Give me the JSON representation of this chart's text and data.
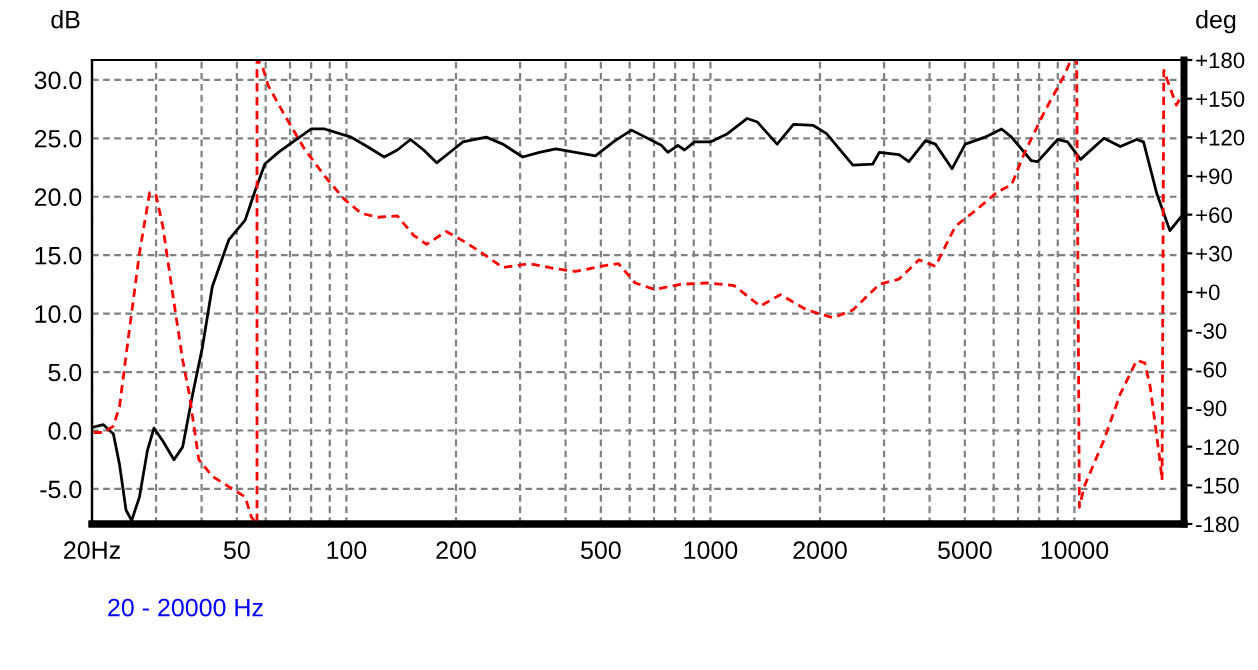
{
  "chart_data": {
    "type": "line",
    "xlabel": null,
    "ylabel": "dB",
    "y2label": "deg",
    "annotations": [
      "20 - 20000 Hz"
    ],
    "log": "x",
    "grid": true,
    "xlim": [
      20,
      20000
    ],
    "xticks": [
      {
        "value": 20,
        "label": "20Hz"
      },
      {
        "value": 30,
        "label": null
      },
      {
        "value": 40,
        "label": null
      },
      50,
      {
        "value": 60,
        "label": null
      },
      {
        "value": 70,
        "label": null
      },
      {
        "value": 80,
        "label": null
      },
      {
        "value": 90,
        "label": null
      },
      100,
      200,
      {
        "value": 300,
        "label": null
      },
      {
        "value": 400,
        "label": null
      },
      500,
      {
        "value": 600,
        "label": null
      },
      {
        "value": 700,
        "label": null
      },
      {
        "value": 800,
        "label": null
      },
      {
        "value": 900,
        "label": null
      },
      1000,
      2000,
      {
        "value": 3000,
        "label": null
      },
      {
        "value": 4000,
        "label": null
      },
      5000,
      {
        "value": 6000,
        "label": null
      },
      {
        "value": 7000,
        "label": null
      },
      {
        "value": 8000,
        "label": null
      },
      {
        "value": 9000,
        "label": null
      },
      10000
    ],
    "ylim": [
      -8,
      31.7
    ],
    "yticks": [
      {
        "value": -5,
        "label": "-5.0"
      },
      {
        "value": 0,
        "label": "0.0"
      },
      {
        "value": 5,
        "label": "5.0"
      },
      {
        "value": 10,
        "label": "10.0"
      },
      {
        "value": 15,
        "label": "15.0"
      },
      {
        "value": 20,
        "label": "20.0"
      },
      {
        "value": 25,
        "label": "25.0"
      },
      {
        "value": 30,
        "label": "30.0"
      }
    ],
    "y2lim": [
      -180,
      180
    ],
    "y2ticks": [
      -180,
      -150,
      -120,
      -90,
      -60,
      -30,
      {
        "value": 0,
        "label": "+0"
      },
      {
        "value": 30,
        "label": "+30"
      },
      {
        "value": 60,
        "label": "+60"
      },
      {
        "value": 90,
        "label": "+90"
      },
      {
        "value": 120,
        "label": "+120"
      },
      {
        "value": 150,
        "label": "+150"
      },
      {
        "value": 180,
        "label": "+180"
      }
    ],
    "series": [
      {
        "color": "#000000",
        "line_style": "solid",
        "x": [
          20.2,
          21.5,
          22.9,
          23.8,
          24.8,
          25.7,
          27.0,
          28.4,
          29.6,
          31.3,
          33.6,
          35.5,
          37.8,
          40.2,
          42.8,
          47.5,
          52.7,
          56.1,
          59.7,
          65.0,
          72.1,
          80.1,
          87.1,
          103,
          114,
          127,
          138,
          150,
          163,
          177,
          196,
          209,
          242,
          269,
          305,
          339,
          376,
          426,
          483,
          547,
          607,
          733,
          764,
          814,
          849,
          904,
          1003,
          1114,
          1262,
          1345,
          1525,
          1691,
          1918,
          2085,
          2462,
          2793,
          2911,
          3297,
          3508,
          3899,
          4150,
          4613,
          5013,
          5678,
          6310,
          6715,
          7603,
          7925,
          8990,
          9572,
          10400,
          12050,
          13370,
          14830,
          15480,
          16830,
          18290,
          19900
        ],
        "values": [
          0.3,
          0.5,
          -0.3,
          -2.9,
          -6.8,
          -7.7,
          -5.7,
          -1.7,
          0.2,
          -0.9,
          -2.5,
          -1.4,
          3.1,
          7.1,
          12.3,
          16.3,
          18.0,
          20.5,
          22.8,
          23.8,
          24.8,
          25.8,
          25.8,
          25.1,
          24.3,
          23.4,
          24.0,
          24.9,
          24.0,
          22.9,
          24.0,
          24.7,
          25.1,
          24.5,
          23.4,
          23.8,
          24.1,
          23.8,
          23.5,
          24.8,
          25.7,
          24.4,
          23.8,
          24.4,
          24.0,
          24.7,
          24.7,
          25.4,
          26.7,
          26.4,
          24.5,
          26.2,
          26.1,
          25.4,
          22.7,
          22.8,
          23.8,
          23.6,
          23.0,
          24.8,
          24.5,
          22.4,
          24.5,
          25.1,
          25.8,
          25.1,
          23.1,
          23.0,
          24.9,
          24.7,
          23.2,
          25.0,
          24.3,
          24.9,
          24.7,
          20.3,
          17.1,
          18.5
        ]
      },
      {
        "color": "#ff0000",
        "line_style": "dashed",
        "axis": "y2",
        "x": [
          20.2,
          21.5,
          22.9,
          23.8,
          25.4,
          27.0,
          28.8,
          30.0,
          31.3,
          33.3,
          35.5,
          37.0,
          39.3,
          42.8,
          47.5,
          52.7,
          54.9,
          56.8,
          56.8,
          58.6,
          61.0,
          67.7,
          76.7,
          87.1,
          98.6,
          110,
          122,
          138,
          153,
          166,
          188,
          214,
          242,
          269,
          318,
          376,
          426,
          503,
          559,
          621,
          703,
          830,
          982,
          1161,
          1371,
          1556,
          1841,
          2173,
          2462,
          2911,
          3297,
          3742,
          4150,
          4709,
          5337,
          6167,
          6715,
          7296,
          8278,
          9376,
          9773,
          10140,
          10320,
          10640,
          12050,
          13370,
          14830,
          15600,
          16140,
          17180,
          17410,
          17600,
          19060,
          19900
        ],
        "values": [
          -109,
          -109,
          -104,
          -89,
          -27,
          30,
          77,
          75,
          51,
          -1,
          -53,
          -79,
          -130,
          -143,
          -151,
          -159,
          -175,
          -180,
          180,
          176,
          160,
          137,
          111,
          90,
          72,
          61,
          58,
          59,
          44,
          37,
          47,
          38,
          28,
          19,
          22,
          18,
          16,
          20,
          22,
          7,
          2,
          6,
          7,
          5,
          -11,
          -2,
          -14,
          -20,
          -14,
          6,
          10,
          25,
          20,
          51,
          63,
          78,
          83,
          108,
          140,
          168,
          180,
          180,
          -167,
          -151,
          -115,
          -79,
          -53,
          -55,
          -73,
          -131,
          -146,
          172,
          145,
          155
        ]
      }
    ]
  }
}
